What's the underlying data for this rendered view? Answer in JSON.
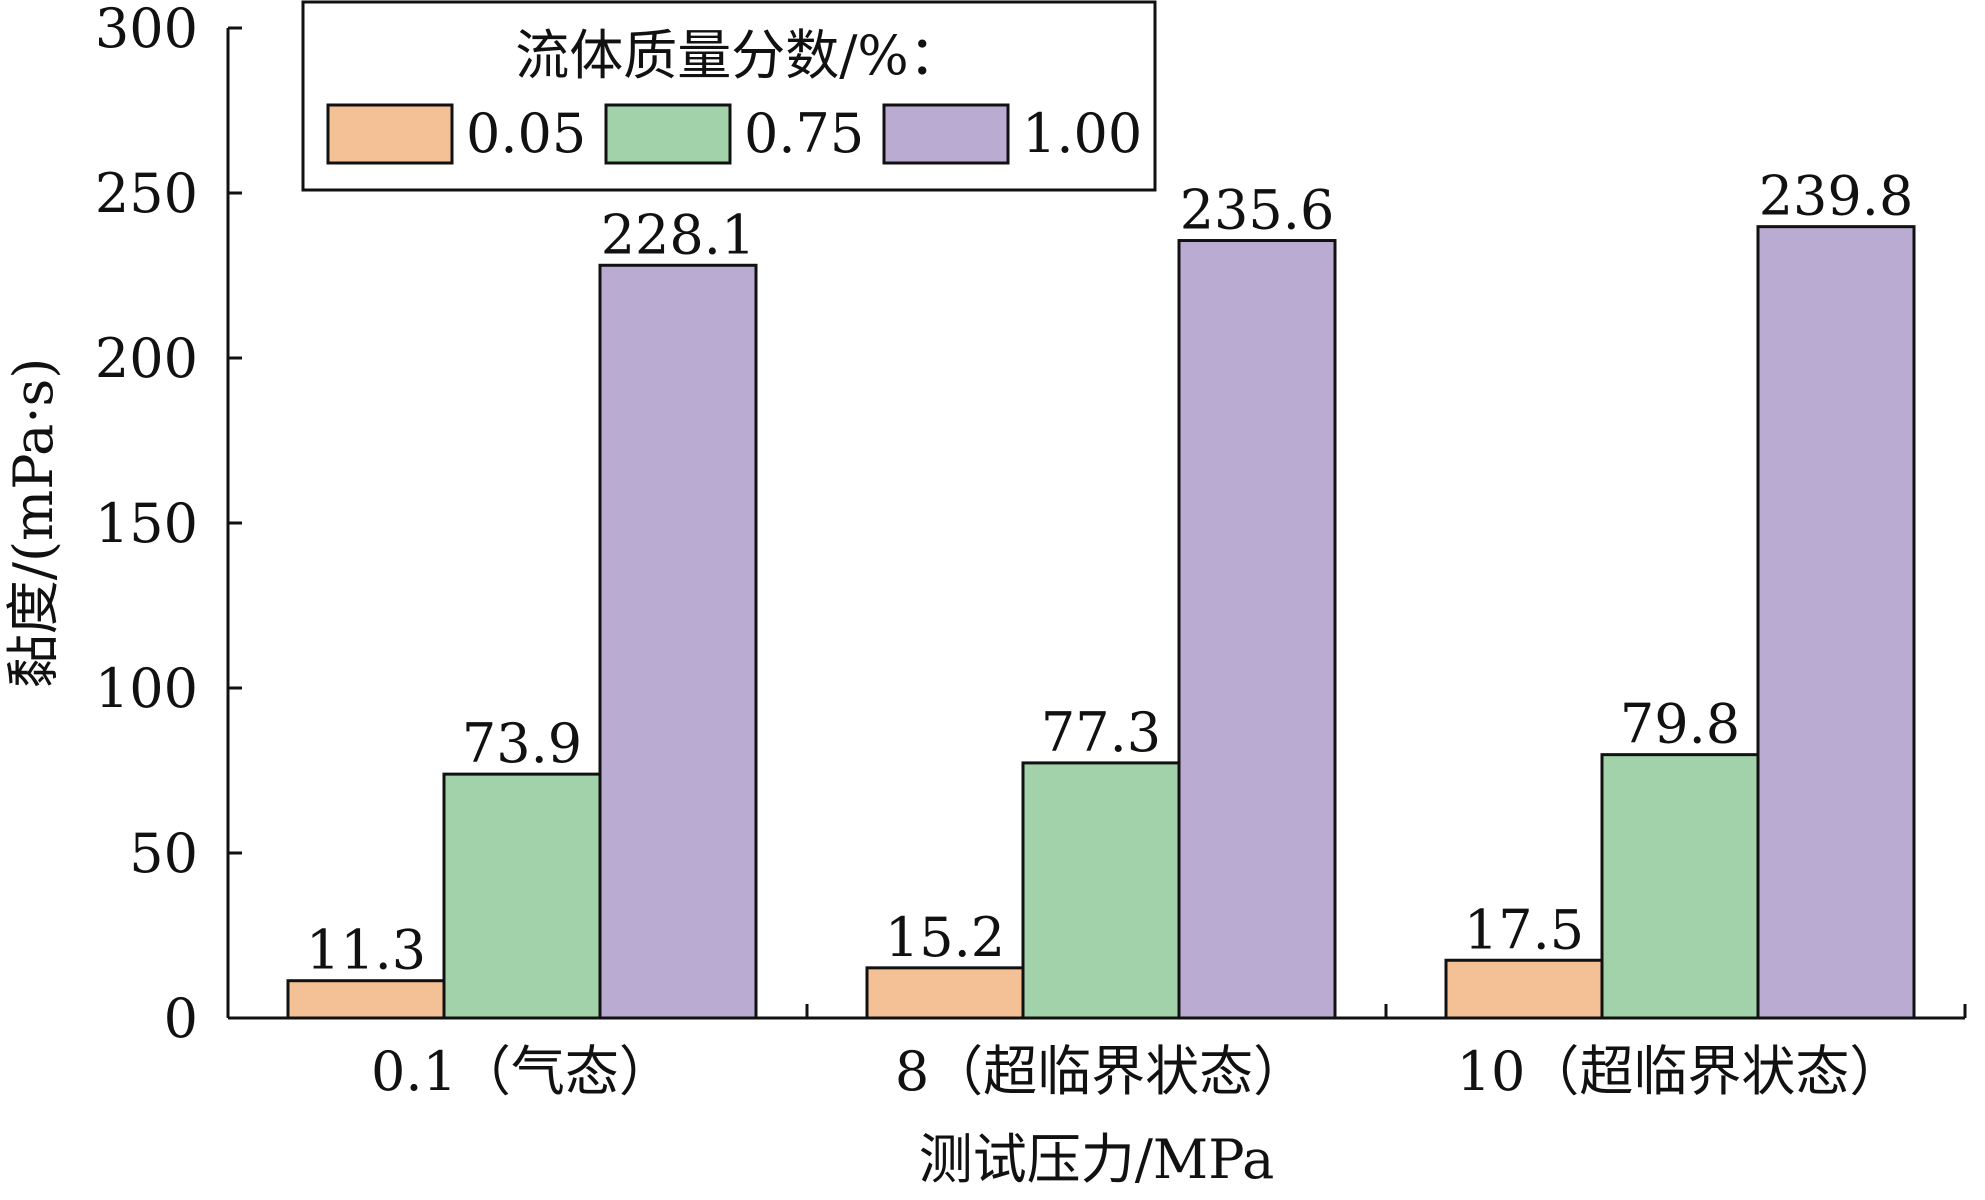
{
  "chart_data": {
    "type": "bar",
    "title": "",
    "xlabel": "测试压力/MPa",
    "ylabel": "黏度/(mPa·s)",
    "ylim": [
      0,
      300
    ],
    "yticks": [
      0,
      50,
      100,
      150,
      200,
      250,
      300
    ],
    "categories": [
      "0.1（气态）",
      "8（超临界状态）",
      "10（超临界状态）"
    ],
    "legend": {
      "title": "流体质量分数/%：",
      "placement": "top-left",
      "columns": 3
    },
    "series": [
      {
        "name": "0.05",
        "color": "#F4C197",
        "values": [
          11.3,
          15.2,
          17.5
        ],
        "labels": [
          "11.3",
          "15.2",
          "17.5"
        ]
      },
      {
        "name": "0.75",
        "color": "#A2D2A9",
        "values": [
          73.9,
          77.3,
          79.8
        ],
        "labels": [
          "73.9",
          "77.3",
          "79.8"
        ]
      },
      {
        "name": "1.00",
        "color": "#BAABD2",
        "values": [
          228.1,
          235.6,
          239.8
        ],
        "labels": [
          "228.1",
          "235.6",
          "239.8"
        ]
      }
    ],
    "grid": false
  }
}
